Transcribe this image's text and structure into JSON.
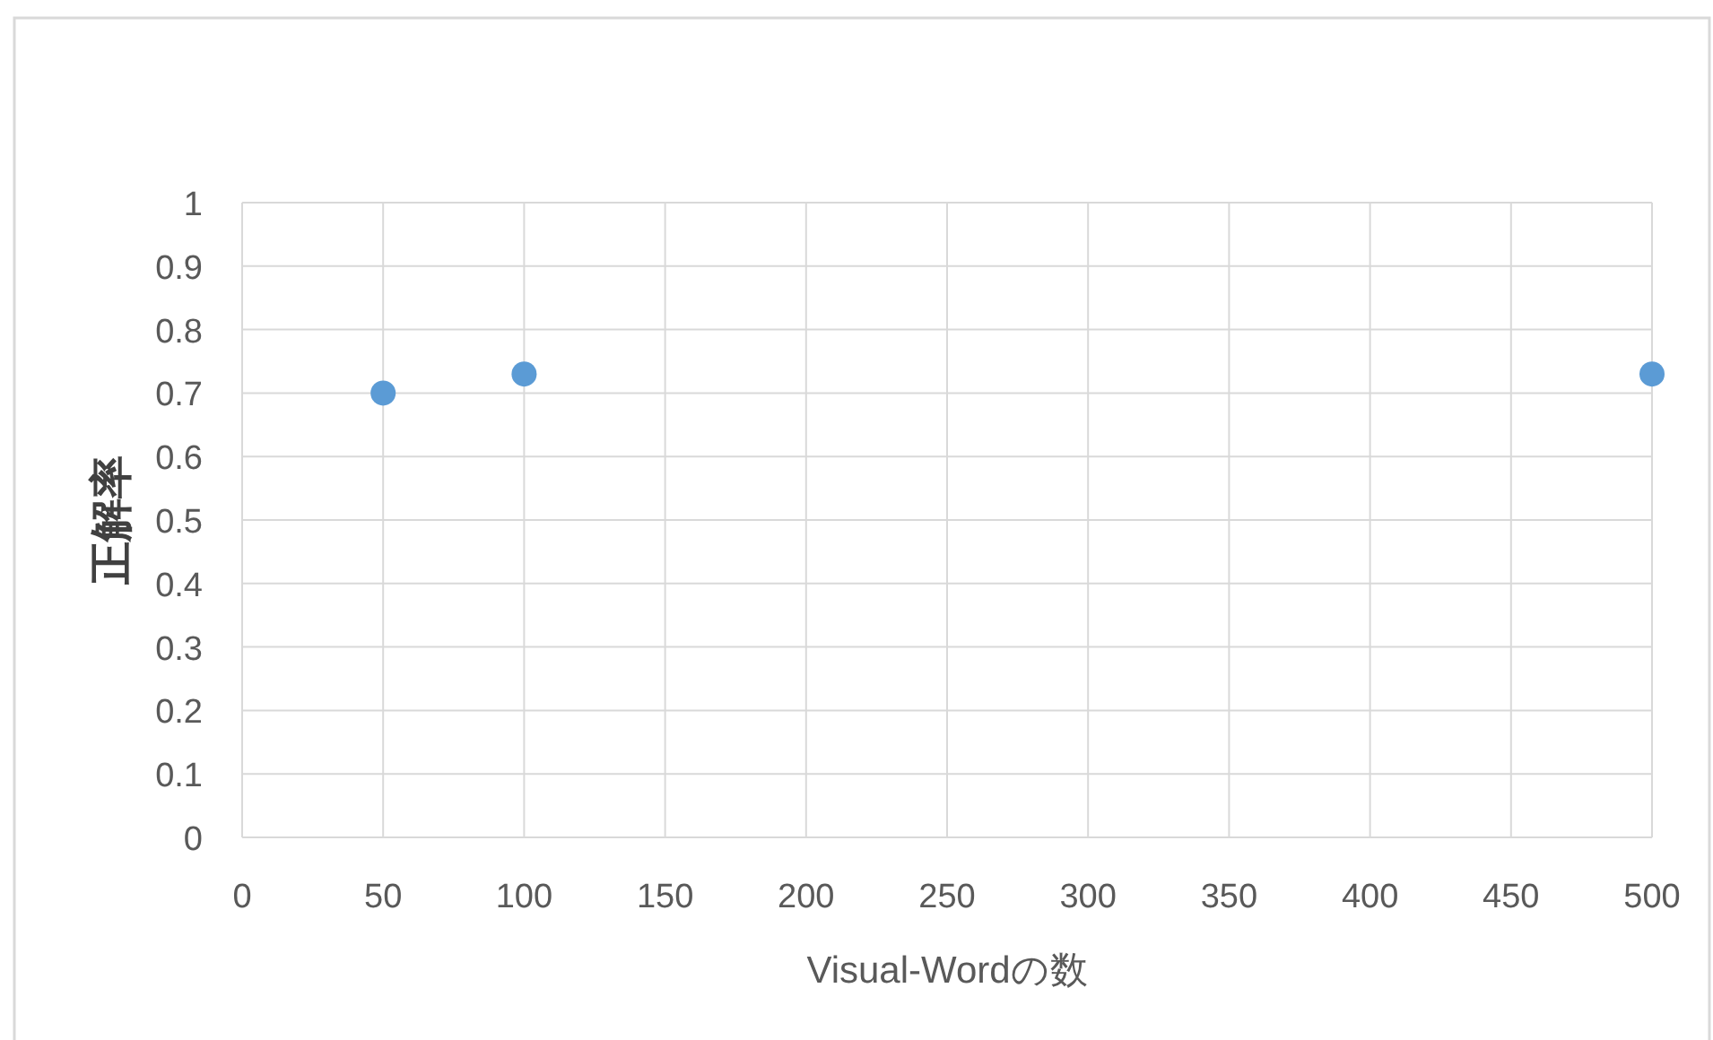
{
  "chart_data": {
    "type": "scatter",
    "xlabel": "Visual-Wordの数",
    "ylabel": "正解率",
    "x": [
      50,
      100,
      500
    ],
    "series": [
      {
        "color": "#5b9bd5",
        "values": [
          0.7,
          0.73,
          0.73
        ]
      }
    ],
    "xlim": [
      0,
      500
    ],
    "ylim": [
      0,
      1
    ],
    "xticks": [
      0,
      50,
      100,
      150,
      200,
      250,
      300,
      350,
      400,
      450,
      500
    ],
    "yticks": [
      0,
      0.1,
      0.2,
      0.3,
      0.4,
      0.5,
      0.6,
      0.7,
      0.8,
      0.9,
      1
    ],
    "grid": true,
    "marker": "circle"
  }
}
